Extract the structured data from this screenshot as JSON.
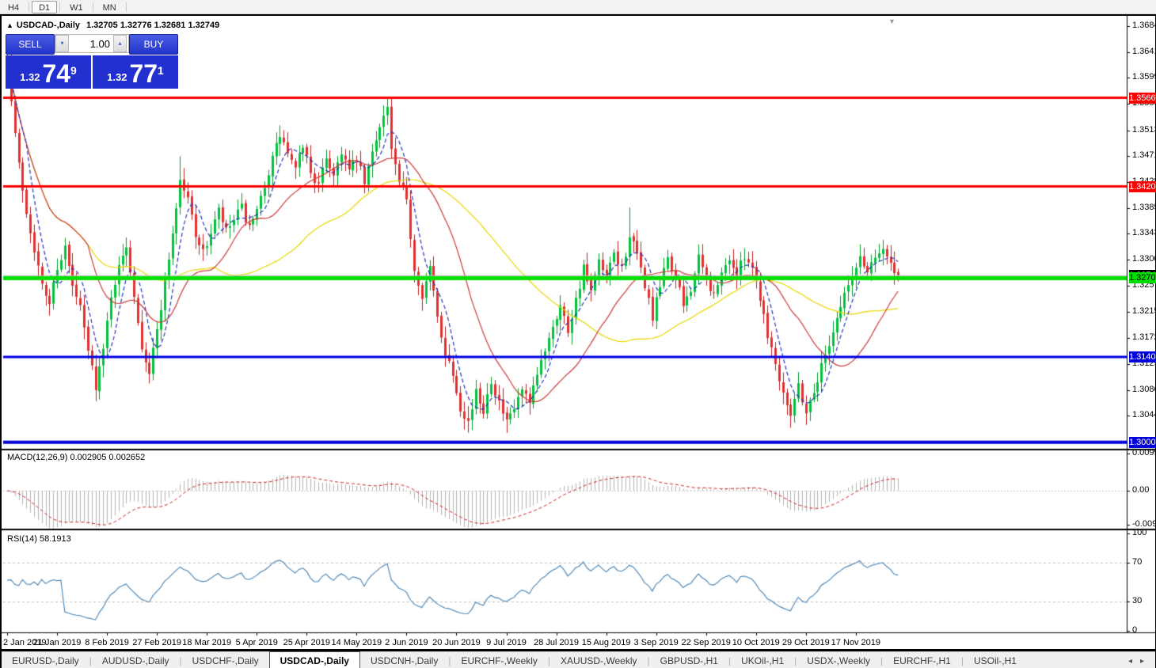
{
  "toolbar": {
    "timeframes": [
      {
        "label": "H4",
        "active": false
      },
      {
        "label": "D1",
        "active": true
      },
      {
        "label": "W1",
        "active": false
      },
      {
        "label": "MN",
        "active": false
      }
    ]
  },
  "header": {
    "collapse_icon": "▲",
    "title": "USDCAD-,Daily",
    "ohlc": "1.32705 1.32776 1.32681 1.32749"
  },
  "trade_panel": {
    "sell_label": "SELL",
    "buy_label": "BUY",
    "volume": "1.00",
    "sell_price_small": "1.32",
    "sell_price_big": "74",
    "sell_price_sup": "9",
    "buy_price_small": "1.32",
    "buy_price_big": "77",
    "buy_price_sup": "1",
    "spin_down_icon": "▾",
    "spin_up_icon": "▴"
  },
  "shift_marker_icon": "▼",
  "price_axis": {
    "labels": [
      "1.36840",
      "1.36410",
      "1.35990",
      "1.35560",
      "1.35130",
      "1.34710",
      "1.34280",
      "1.33850",
      "1.33430",
      "1.33000",
      "1.32570",
      "1.32150",
      "1.31720",
      "1.31290",
      "1.30860",
      "1.30440"
    ]
  },
  "macd": {
    "label": "MACD(12,26,9) 0.002905 0.002652",
    "value": 0.002905,
    "signal": 0.002652,
    "axis": [
      {
        "text": "0.009957",
        "v": 0.009957
      },
      {
        "text": "0.00",
        "v": 0
      },
      {
        "text": "-0.009188",
        "v": -0.009188
      }
    ]
  },
  "rsi": {
    "label": "RSI(14) 58.1913",
    "value": 58.1913,
    "axis": [
      {
        "text": "100",
        "v": 100
      },
      {
        "text": "70",
        "v": 70
      },
      {
        "text": "30",
        "v": 30
      },
      {
        "text": "0",
        "v": 0
      }
    ],
    "levels": [
      70,
      30
    ]
  },
  "date_axis": {
    "labels": [
      "2 Jan 2019",
      "21 Jan 2019",
      "8 Feb 2019",
      "27 Feb 2019",
      "18 Mar 2019",
      "5 Apr 2019",
      "25 Apr 2019",
      "14 May 2019",
      "2 Jun 2019",
      "20 Jun 2019",
      "9 Jul 2019",
      "28 Jul 2019",
      "15 Aug 2019",
      "3 Sep 2019",
      "22 Sep 2019",
      "10 Oct 2019",
      "29 Oct 2019",
      "17 Nov 2019"
    ]
  },
  "tabs": {
    "items": [
      {
        "label": "EURUSD-,Daily",
        "active": false
      },
      {
        "label": "AUDUSD-,Daily",
        "active": false
      },
      {
        "label": "USDCHF-,Daily",
        "active": false
      },
      {
        "label": "USDCAD-,Daily",
        "active": true
      },
      {
        "label": "USDCNH-,Daily",
        "active": false
      },
      {
        "label": "EURCHF-,Weekly",
        "active": false
      },
      {
        "label": "XAUUSD-,Weekly",
        "active": false
      },
      {
        "label": "GBPUSD-,H1",
        "active": false
      },
      {
        "label": "UKOil-,H1",
        "active": false
      },
      {
        "label": "USDX-,Weekly",
        "active": false
      },
      {
        "label": "EURCHF-,H1",
        "active": false
      },
      {
        "label": "USOil-,H1",
        "active": false
      }
    ],
    "nav_left": "◂",
    "nav_right": "▸"
  },
  "chart_data": {
    "type": "candlestick",
    "symbol": "USDCAD",
    "timeframe": "Daily",
    "last_open": 1.32705,
    "last_high": 1.32776,
    "last_low": 1.32681,
    "last_close": 1.32749,
    "bid": 1.32749,
    "ask": 1.32771,
    "y_axis": {
      "min": 1.2996,
      "max": 1.3684,
      "tick_step": 0.0043
    },
    "hlines": [
      {
        "price": 1.35662,
        "label": "1.35662",
        "color": "#ff0000",
        "thickness": 3
      },
      {
        "price": 1.34206,
        "label": "1.34206",
        "color": "#ff0000",
        "thickness": 3
      },
      {
        "price": 1.32701,
        "label": "1.32701",
        "color": "#00e000",
        "thickness": 5,
        "text_color": "#000"
      },
      {
        "price": 1.31407,
        "label": "1.31407",
        "color": "#0000e0",
        "thickness": 3
      },
      {
        "price": 1.30004,
        "label": "1.30004",
        "color": "#0000d8",
        "thickness": 4
      }
    ],
    "bid_line": {
      "price": 1.32749,
      "color": "#b8b8b8"
    },
    "colors": {
      "up": "#00c23c",
      "up_border": "#009a28",
      "down": "#e03030",
      "down_border": "#c02020",
      "ma_fast": "#2233bb",
      "ma_mid": "#cc3a3a",
      "ma_slow": "#e8d800",
      "macd_hist": "#b4b4b4",
      "macd_signal": "#d02020",
      "rsi_line": "#4682b4"
    },
    "bar_count": 233,
    "anchors": [
      [
        0,
        1.364
      ],
      [
        1,
        1.356
      ],
      [
        3,
        1.3455
      ],
      [
        5,
        1.338
      ],
      [
        7,
        1.332
      ],
      [
        9,
        1.3255
      ],
      [
        11,
        1.323
      ],
      [
        13,
        1.329
      ],
      [
        15,
        1.332
      ],
      [
        17,
        1.3255
      ],
      [
        19,
        1.322
      ],
      [
        21,
        1.315
      ],
      [
        23,
        1.3095
      ],
      [
        25,
        1.315
      ],
      [
        27,
        1.3245
      ],
      [
        29,
        1.3285
      ],
      [
        31,
        1.3325
      ],
      [
        33,
        1.3245
      ],
      [
        35,
        1.316
      ],
      [
        37,
        1.3115
      ],
      [
        39,
        1.3185
      ],
      [
        41,
        1.3265
      ],
      [
        43,
        1.3345
      ],
      [
        45,
        1.343
      ],
      [
        47,
        1.34
      ],
      [
        49,
        1.3345
      ],
      [
        51,
        1.331
      ],
      [
        53,
        1.3345
      ],
      [
        55,
        1.338
      ],
      [
        57,
        1.3345
      ],
      [
        59,
        1.3365
      ],
      [
        61,
        1.3385
      ],
      [
        63,
        1.335
      ],
      [
        65,
        1.3375
      ],
      [
        67,
        1.3425
      ],
      [
        69,
        1.3465
      ],
      [
        71,
        1.3505
      ],
      [
        73,
        1.3475
      ],
      [
        75,
        1.3445
      ],
      [
        77,
        1.349
      ],
      [
        79,
        1.3445
      ],
      [
        81,
        1.342
      ],
      [
        83,
        1.347
      ],
      [
        85,
        1.344
      ],
      [
        87,
        1.348
      ],
      [
        89,
        1.3445
      ],
      [
        91,
        1.3465
      ],
      [
        93,
        1.3425
      ],
      [
        95,
        1.3475
      ],
      [
        97,
        1.3525
      ],
      [
        99,
        1.355
      ],
      [
        100,
        1.348
      ],
      [
        102,
        1.3425
      ],
      [
        104,
        1.3395
      ],
      [
        106,
        1.3285
      ],
      [
        108,
        1.3245
      ],
      [
        110,
        1.3285
      ],
      [
        112,
        1.3205
      ],
      [
        114,
        1.315
      ],
      [
        116,
        1.3115
      ],
      [
        118,
        1.306
      ],
      [
        120,
        1.3035
      ],
      [
        122,
        1.308
      ],
      [
        124,
        1.3055
      ],
      [
        126,
        1.3105
      ],
      [
        128,
        1.3065
      ],
      [
        130,
        1.303
      ],
      [
        132,
        1.3055
      ],
      [
        134,
        1.3085
      ],
      [
        136,
        1.306
      ],
      [
        138,
        1.311
      ],
      [
        140,
        1.3155
      ],
      [
        142,
        1.3195
      ],
      [
        144,
        1.3225
      ],
      [
        146,
        1.3185
      ],
      [
        148,
        1.3235
      ],
      [
        150,
        1.3285
      ],
      [
        152,
        1.3245
      ],
      [
        154,
        1.3295
      ],
      [
        156,
        1.3265
      ],
      [
        158,
        1.331
      ],
      [
        160,
        1.3285
      ],
      [
        162,
        1.334
      ],
      [
        164,
        1.3305
      ],
      [
        166,
        1.326
      ],
      [
        168,
        1.3205
      ],
      [
        170,
        1.3255
      ],
      [
        172,
        1.3305
      ],
      [
        174,
        1.327
      ],
      [
        176,
        1.3225
      ],
      [
        178,
        1.3255
      ],
      [
        180,
        1.33
      ],
      [
        182,
        1.327
      ],
      [
        184,
        1.324
      ],
      [
        186,
        1.3275
      ],
      [
        188,
        1.3305
      ],
      [
        190,
        1.327
      ],
      [
        192,
        1.331
      ],
      [
        194,
        1.329
      ],
      [
        196,
        1.324
      ],
      [
        198,
        1.318
      ],
      [
        200,
        1.313
      ],
      [
        202,
        1.3085
      ],
      [
        204,
        1.305
      ],
      [
        206,
        1.3095
      ],
      [
        208,
        1.305
      ],
      [
        210,
        1.3085
      ],
      [
        212,
        1.3125
      ],
      [
        214,
        1.3165
      ],
      [
        216,
        1.3205
      ],
      [
        218,
        1.3245
      ],
      [
        220,
        1.327
      ],
      [
        222,
        1.3305
      ],
      [
        224,
        1.328
      ],
      [
        226,
        1.331
      ],
      [
        228,
        1.332
      ],
      [
        230,
        1.329
      ],
      [
        232,
        1.32749
      ]
    ],
    "wick_extremes": {
      "0": {
        "h": 1.3664
      },
      "23": {
        "l": 1.3068
      },
      "45": {
        "h": 1.347
      },
      "71": {
        "h": 1.3521
      },
      "99": {
        "h": 1.3565
      },
      "130": {
        "l": 1.3016
      },
      "162": {
        "h": 1.3386
      },
      "204": {
        "l": 1.3042
      },
      "208": {
        "l": 1.304
      }
    }
  }
}
